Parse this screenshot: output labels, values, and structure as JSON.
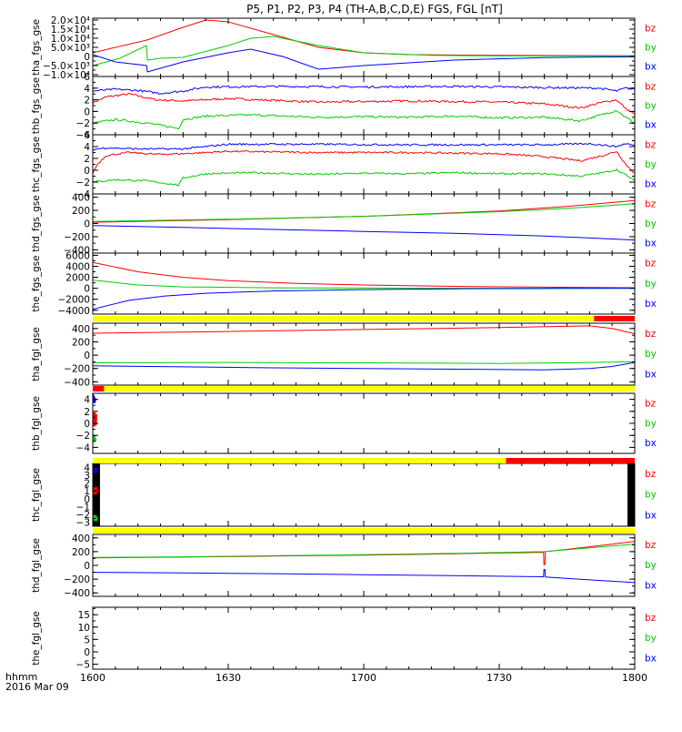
{
  "title": "P5, P1, P2, P3, P4 (TH-A,B,C,D,E) FGS, FGL [nT]",
  "time_axis": {
    "label_line1": "hhmm",
    "label_line2": "2016 Mar 09",
    "ticks": [
      "1600",
      "1630",
      "1700",
      "1730",
      "1800"
    ],
    "range_minutes": [
      0,
      120
    ]
  },
  "colors": {
    "bx": "#0000ff",
    "by": "#00cc00",
    "bz": "#ff0000",
    "bar_yellow": "#ffff00",
    "bar_red": "#ff0000",
    "axis": "#000000"
  },
  "chart_data": [
    {
      "type": "line",
      "id": "tha_fgs",
      "ylabel": "tha_fgs_gse",
      "ylim": [
        -11000,
        21000
      ],
      "yticks": [
        "2.0×10⁴",
        "1.5×10⁴",
        "1.0×10⁴",
        "5.0×10³",
        "0",
        "−5.0×10³",
        "−1.0×10⁴"
      ],
      "ytick_values": [
        20000,
        15000,
        10000,
        5000,
        0,
        -5000,
        -10000
      ],
      "legend": [
        "bz",
        "by",
        "bx"
      ],
      "series": [
        {
          "name": "bz",
          "x": [
            0,
            5,
            12,
            20,
            25,
            30,
            40,
            50,
            60,
            70,
            85,
            100,
            120
          ],
          "y": [
            2000,
            5000,
            9000,
            16000,
            20000,
            19000,
            12000,
            5000,
            2000,
            1000,
            700,
            500,
            400
          ]
        },
        {
          "name": "by",
          "x": [
            0,
            6,
            11.9,
            12.1,
            15,
            20,
            30,
            35,
            40,
            50,
            60,
            75,
            90,
            120
          ],
          "y": [
            -5000,
            -1000,
            6000,
            -2000,
            -1000,
            -500,
            6000,
            10000,
            11000,
            6000,
            2000,
            600,
            300,
            200
          ]
        },
        {
          "name": "bx",
          "x": [
            0,
            5,
            11.9,
            12.1,
            20,
            30,
            35,
            42,
            50,
            60,
            80,
            100,
            120
          ],
          "y": [
            1000,
            -3000,
            -5000,
            -8500,
            -3000,
            2000,
            4000,
            0,
            -7000,
            -5000,
            -2000,
            -600,
            -200
          ]
        }
      ]
    },
    {
      "type": "line",
      "id": "thb_fgs",
      "ylabel": "thb_fgs_gse",
      "ylim": [
        -4,
        6
      ],
      "yticks": [
        "6",
        "4",
        "2",
        "0",
        "−2",
        "−4"
      ],
      "ytick_values": [
        6,
        4,
        2,
        0,
        -2,
        -4
      ],
      "legend": [
        "bz",
        "by",
        "bx"
      ],
      "series": [
        {
          "name": "bz",
          "x": [
            0,
            3,
            8,
            14,
            20,
            30,
            50,
            70,
            90,
            100,
            108,
            113,
            116,
            118,
            120
          ],
          "y": [
            1.5,
            2.5,
            3.0,
            2.0,
            1.8,
            2.2,
            1.6,
            1.8,
            1.6,
            1.3,
            0.6,
            1.6,
            2.0,
            0.5,
            -0.5
          ]
        },
        {
          "name": "by",
          "x": [
            0,
            5,
            12,
            19,
            20,
            25,
            35,
            50,
            60,
            70,
            80,
            90,
            100,
            108,
            113,
            116,
            118,
            120
          ],
          "y": [
            -2.0,
            -1.4,
            -2.0,
            -2.9,
            -1.4,
            -0.8,
            -0.6,
            -1.0,
            -0.9,
            -1.0,
            -0.8,
            -1.1,
            -1.0,
            -1.6,
            -0.5,
            0.2,
            -1.0,
            -2.0
          ]
        },
        {
          "name": "bx",
          "x": [
            0,
            5,
            10,
            15,
            20,
            25,
            40,
            60,
            80,
            100,
            112,
            116,
            118,
            120
          ],
          "y": [
            3.5,
            3.8,
            3.6,
            3.1,
            3.5,
            4.2,
            4.3,
            4.2,
            4.3,
            4.1,
            4.0,
            3.5,
            4.0,
            3.8
          ]
        }
      ]
    },
    {
      "type": "line",
      "id": "thc_fgs",
      "ylabel": "thc_fgs_gse",
      "ylim": [
        -4,
        6
      ],
      "yticks": [
        "6",
        "4",
        "2",
        "0",
        "−2",
        "−4"
      ],
      "ytick_values": [
        6,
        4,
        2,
        0,
        -2,
        -4
      ],
      "legend": [
        "bz",
        "by",
        "bx"
      ],
      "series": [
        {
          "name": "bz",
          "x": [
            0,
            1,
            3,
            8,
            14,
            20,
            30,
            50,
            70,
            90,
            100,
            108,
            113,
            116,
            118,
            120
          ],
          "y": [
            -0.5,
            1.0,
            2.5,
            3.0,
            2.7,
            2.8,
            3.2,
            3.0,
            3.0,
            2.8,
            2.3,
            1.6,
            2.5,
            3.2,
            1.0,
            -0.5
          ]
        },
        {
          "name": "by",
          "x": [
            0,
            5,
            12,
            19,
            20,
            25,
            35,
            50,
            60,
            70,
            80,
            90,
            100,
            108,
            113,
            116,
            118,
            120
          ],
          "y": [
            -2.0,
            -1.6,
            -1.8,
            -2.5,
            -1.3,
            -0.6,
            -0.4,
            -0.7,
            -0.5,
            -0.6,
            -0.4,
            -0.6,
            -0.6,
            -1.0,
            -0.4,
            0.1,
            -0.8,
            -1.8
          ]
        },
        {
          "name": "bx",
          "x": [
            0,
            3,
            10,
            20,
            30,
            50,
            70,
            90,
            100,
            110,
            116,
            118,
            120
          ],
          "y": [
            3.5,
            3.8,
            3.6,
            3.6,
            4.4,
            4.4,
            4.3,
            4.3,
            4.3,
            4.5,
            4.0,
            4.5,
            4.2
          ]
        }
      ]
    },
    {
      "type": "line",
      "id": "thd_fgs",
      "ylabel": "thd_fgs_gse",
      "ylim": [
        -450,
        450
      ],
      "yticks": [
        "400",
        "200",
        "0",
        "−200",
        "−400"
      ],
      "ytick_values": [
        400,
        200,
        0,
        -200,
        -400
      ],
      "legend": [
        "bz",
        "by",
        "bx"
      ],
      "series": [
        {
          "name": "bz",
          "x": [
            0,
            30,
            60,
            90,
            105,
            120
          ],
          "y": [
            20,
            60,
            110,
            190,
            260,
            350
          ]
        },
        {
          "name": "by",
          "x": [
            0,
            30,
            60,
            90,
            105,
            120
          ],
          "y": [
            30,
            65,
            110,
            180,
            230,
            300
          ]
        },
        {
          "name": "bx",
          "x": [
            0,
            20,
            40,
            60,
            80,
            100,
            120
          ],
          "y": [
            -30,
            -60,
            -90,
            -120,
            -150,
            -190,
            -250
          ]
        }
      ]
    },
    {
      "type": "line",
      "id": "the_fgs",
      "ylabel": "the_fgs_gse",
      "ylim": [
        -4700,
        6400
      ],
      "yticks": [
        "6000",
        "4000",
        "2000",
        "0",
        "−2000",
        "−4000"
      ],
      "ytick_values": [
        6000,
        4000,
        2000,
        0,
        -2000,
        -4000
      ],
      "legend": [
        "bz",
        "by",
        "bx"
      ],
      "series": [
        {
          "name": "bz",
          "x": [
            0,
            10,
            20,
            30,
            45,
            60,
            80,
            100,
            120
          ],
          "y": [
            4700,
            3000,
            2000,
            1400,
            900,
            600,
            350,
            200,
            100
          ]
        },
        {
          "name": "by",
          "x": [
            0,
            10,
            20,
            40,
            60,
            80,
            120
          ],
          "y": [
            1500,
            600,
            250,
            80,
            30,
            10,
            0
          ]
        },
        {
          "name": "bx",
          "x": [
            0,
            8,
            16,
            25,
            40,
            60,
            80,
            100,
            120
          ],
          "y": [
            -3800,
            -2200,
            -1400,
            -900,
            -500,
            -250,
            -100,
            -50,
            0
          ]
        }
      ]
    },
    {
      "type": "line",
      "id": "tha_fgl",
      "ylabel": "tha_fgl_gse",
      "ylim": [
        -450,
        480
      ],
      "yticks": [
        "400",
        "200",
        "0",
        "−200",
        "−400"
      ],
      "ytick_values": [
        400,
        200,
        0,
        -200,
        -400
      ],
      "legend": [
        "bz",
        "by",
        "bx"
      ],
      "status_bar": {
        "yellow_until_minute": 111,
        "red_from_minute": 111
      },
      "series": [
        {
          "name": "bz",
          "x": [
            0,
            30,
            60,
            90,
            110,
            115,
            120
          ],
          "y": [
            330,
            355,
            385,
            415,
            440,
            400,
            320
          ]
        },
        {
          "name": "by",
          "x": [
            0,
            30,
            60,
            90,
            110,
            120
          ],
          "y": [
            -115,
            -110,
            -115,
            -125,
            -110,
            -100
          ]
        },
        {
          "name": "bx",
          "x": [
            0,
            20,
            40,
            60,
            80,
            100,
            110,
            115,
            120
          ],
          "y": [
            -160,
            -175,
            -190,
            -200,
            -210,
            -220,
            -200,
            -170,
            -110
          ]
        }
      ]
    },
    {
      "type": "line",
      "id": "thb_fgl",
      "ylabel": "thb_fgl_gse",
      "ylim": [
        -5,
        5
      ],
      "yticks": [
        "4",
        "2",
        "0",
        "−2",
        "−4"
      ],
      "ytick_values": [
        4,
        2,
        0,
        -2,
        -4
      ],
      "legend": [
        "bz",
        "by",
        "bx"
      ],
      "status_bar": {
        "red_until_minute": 2.5,
        "yellow_from_minute": 2.5
      },
      "series": [
        {
          "name": "bz",
          "x": [
            0.2,
            0.3,
            0.5,
            0.6
          ],
          "y": [
            -0.5,
            1.8,
            -0.3,
            1.5
          ]
        },
        {
          "name": "by",
          "x": [
            0.2,
            0.3,
            0.5
          ],
          "y": [
            -2.0,
            -3.0,
            -2.5
          ]
        },
        {
          "name": "bx",
          "x": [
            0.2,
            0.3,
            0.5
          ],
          "y": [
            3.4,
            4.0,
            3.7
          ]
        }
      ]
    },
    {
      "type": "line",
      "id": "thc_fgl",
      "ylabel": "thc_fgl_gse",
      "ylim": [
        -3.5,
        4.5
      ],
      "yticks": [
        "4",
        "3",
        "2",
        "1",
        "0",
        "−1",
        "−2",
        "−3"
      ],
      "ytick_values": [
        4,
        3,
        2,
        1,
        0,
        -1,
        -2,
        -3
      ],
      "legend": [
        "bz",
        "by",
        "bx"
      ],
      "status_bar": {
        "yellow_until_minute": 91.5,
        "red_from_minute": 91.5
      },
      "black_bands_minutes": [
        [
          0,
          1.6
        ],
        [
          118.4,
          120
        ]
      ],
      "series": [
        {
          "name": "bz",
          "x": [
            0.4,
            0.6,
            0.8,
            1.0
          ],
          "y": [
            0.5,
            1.5,
            0.8,
            1.2
          ]
        },
        {
          "name": "by",
          "x": [
            0.4,
            0.6,
            0.8
          ],
          "y": [
            -2.0,
            -2.8,
            -2.3
          ]
        },
        {
          "name": "bx",
          "x": [
            0.4,
            0.6,
            0.8
          ],
          "y": [
            3.3,
            4.0,
            3.6
          ]
        }
      ]
    },
    {
      "type": "line",
      "id": "thd_fgl",
      "ylabel": "thd_fgl_gse",
      "ylim": [
        -450,
        450
      ],
      "yticks": [
        "400",
        "200",
        "0",
        "−200",
        "−400"
      ],
      "ytick_values": [
        400,
        200,
        0,
        -200,
        -400
      ],
      "legend": [
        "bz",
        "by",
        "bx"
      ],
      "status_bar": {
        "yellow_until_minute": 120
      },
      "series": [
        {
          "name": "bz",
          "x": [
            0,
            20,
            40,
            60,
            80,
            99.8,
            99.9,
            100.1,
            100.2,
            110,
            120
          ],
          "y": [
            110,
            120,
            135,
            150,
            170,
            190,
            10,
            10,
            200,
            270,
            350
          ]
        },
        {
          "name": "by",
          "x": [
            0,
            20,
            40,
            60,
            80,
            100,
            110,
            120
          ],
          "y": [
            115,
            125,
            140,
            155,
            175,
            200,
            255,
            310
          ]
        },
        {
          "name": "bx",
          "x": [
            0,
            20,
            40,
            60,
            80,
            99.8,
            99.9,
            100.1,
            100.2,
            110,
            120
          ],
          "y": [
            -100,
            -110,
            -120,
            -135,
            -150,
            -165,
            -60,
            -60,
            -170,
            -210,
            -250
          ]
        }
      ]
    },
    {
      "type": "line",
      "id": "the_fgl",
      "ylabel": "the_fgl_gse",
      "ylim": [
        -7,
        18
      ],
      "yticks": [
        "15",
        "10",
        "5",
        "0",
        "−5"
      ],
      "ytick_values": [
        15,
        10,
        5,
        0,
        -5
      ],
      "legend": [
        "bz",
        "by",
        "bx"
      ],
      "series": []
    }
  ]
}
